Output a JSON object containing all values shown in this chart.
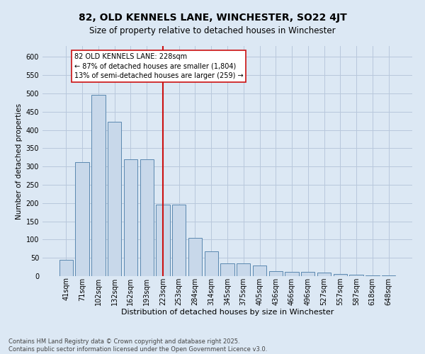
{
  "title": "82, OLD KENNELS LANE, WINCHESTER, SO22 4JT",
  "subtitle": "Size of property relative to detached houses in Winchester",
  "xlabel": "Distribution of detached houses by size in Winchester",
  "ylabel": "Number of detached properties",
  "categories": [
    "41sqm",
    "71sqm",
    "102sqm",
    "132sqm",
    "162sqm",
    "193sqm",
    "223sqm",
    "253sqm",
    "284sqm",
    "314sqm",
    "345sqm",
    "375sqm",
    "405sqm",
    "436sqm",
    "466sqm",
    "496sqm",
    "527sqm",
    "557sqm",
    "587sqm",
    "618sqm",
    "648sqm"
  ],
  "values": [
    45,
    313,
    497,
    422,
    320,
    320,
    195,
    195,
    105,
    68,
    35,
    35,
    30,
    13,
    11,
    12,
    10,
    6,
    4,
    2,
    2
  ],
  "bar_color": "#c8d8ea",
  "bar_edge_color": "#5a88b0",
  "vline_x_index": 6,
  "vline_color": "#cc1111",
  "annotation_text": "82 OLD KENNELS LANE: 228sqm\n← 87% of detached houses are smaller (1,804)\n13% of semi-detached houses are larger (259) →",
  "annotation_box_facecolor": "#ffffff",
  "annotation_box_edgecolor": "#cc1111",
  "ylim_max": 630,
  "yticks": [
    0,
    50,
    100,
    150,
    200,
    250,
    300,
    350,
    400,
    450,
    500,
    550,
    600
  ],
  "grid_color": "#b8c8dc",
  "background_color": "#dce8f4",
  "footer_line1": "Contains HM Land Registry data © Crown copyright and database right 2025.",
  "footer_line2": "Contains public sector information licensed under the Open Government Licence v3.0.",
  "title_fontsize": 10,
  "subtitle_fontsize": 8.5,
  "ylabel_fontsize": 7.5,
  "xlabel_fontsize": 8,
  "tick_fontsize": 7,
  "annotation_fontsize": 7,
  "footer_fontsize": 6
}
